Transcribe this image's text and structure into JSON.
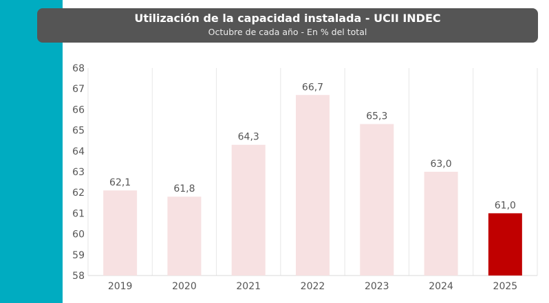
{
  "chart_data": {
    "type": "bar",
    "title": "Utilización de la capacidad instalada - UCII INDEC",
    "subtitle": "Octubre de cada año - En % del total",
    "categories": [
      "2019",
      "2020",
      "2021",
      "2022",
      "2023",
      "2024",
      "2025"
    ],
    "values": [
      62.1,
      61.8,
      64.3,
      66.7,
      65.3,
      63.0,
      61.0
    ],
    "data_labels": [
      "62,1",
      "61,8",
      "64,3",
      "66,7",
      "65,3",
      "63,0",
      "61,0"
    ],
    "ylim": [
      58,
      68
    ],
    "yticks": [
      58,
      59,
      60,
      61,
      62,
      63,
      64,
      65,
      66,
      67,
      68
    ],
    "grid": "vertical",
    "colors": {
      "default": "#f7e1e2",
      "highlight": "#c00000",
      "highlight_category": "2025",
      "accent_strip": "#00acc1",
      "title_box": "#555555"
    }
  }
}
